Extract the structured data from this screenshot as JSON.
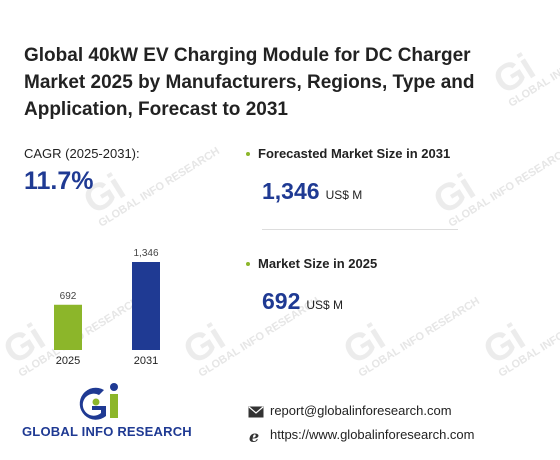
{
  "title": "Global 40kW EV Charging Module for DC Charger Market 2025 by Manufacturers, Regions, Type and Application, Forecast to 2031",
  "cagr": {
    "label": "CAGR (2025-2031):",
    "value": "11.7%"
  },
  "forecast": {
    "label": "Forecasted Market Size in 2031",
    "value": "1,346",
    "unit": "US$ M"
  },
  "market": {
    "label": "Market Size in 2025",
    "value": "692",
    "unit": "US$ M"
  },
  "chart_data": {
    "type": "bar",
    "categories": [
      "2025",
      "2031"
    ],
    "values": [
      692,
      1346
    ],
    "data_labels": [
      "692",
      "1,346"
    ],
    "colors": [
      "#8cb62a",
      "#1f3a93"
    ],
    "ylim": [
      0,
      1346
    ],
    "grid": false
  },
  "logo": {
    "text": "GLOBAL INFO RESEARCH",
    "mark": "Gi"
  },
  "contact": {
    "email": "report@globalinforesearch.com",
    "website": "https://www.globalinforesearch.com"
  },
  "watermark": "GLOBAL INFO RESEARCH",
  "icons": {
    "email": "envelope-icon",
    "website": "ie-globe-icon"
  }
}
